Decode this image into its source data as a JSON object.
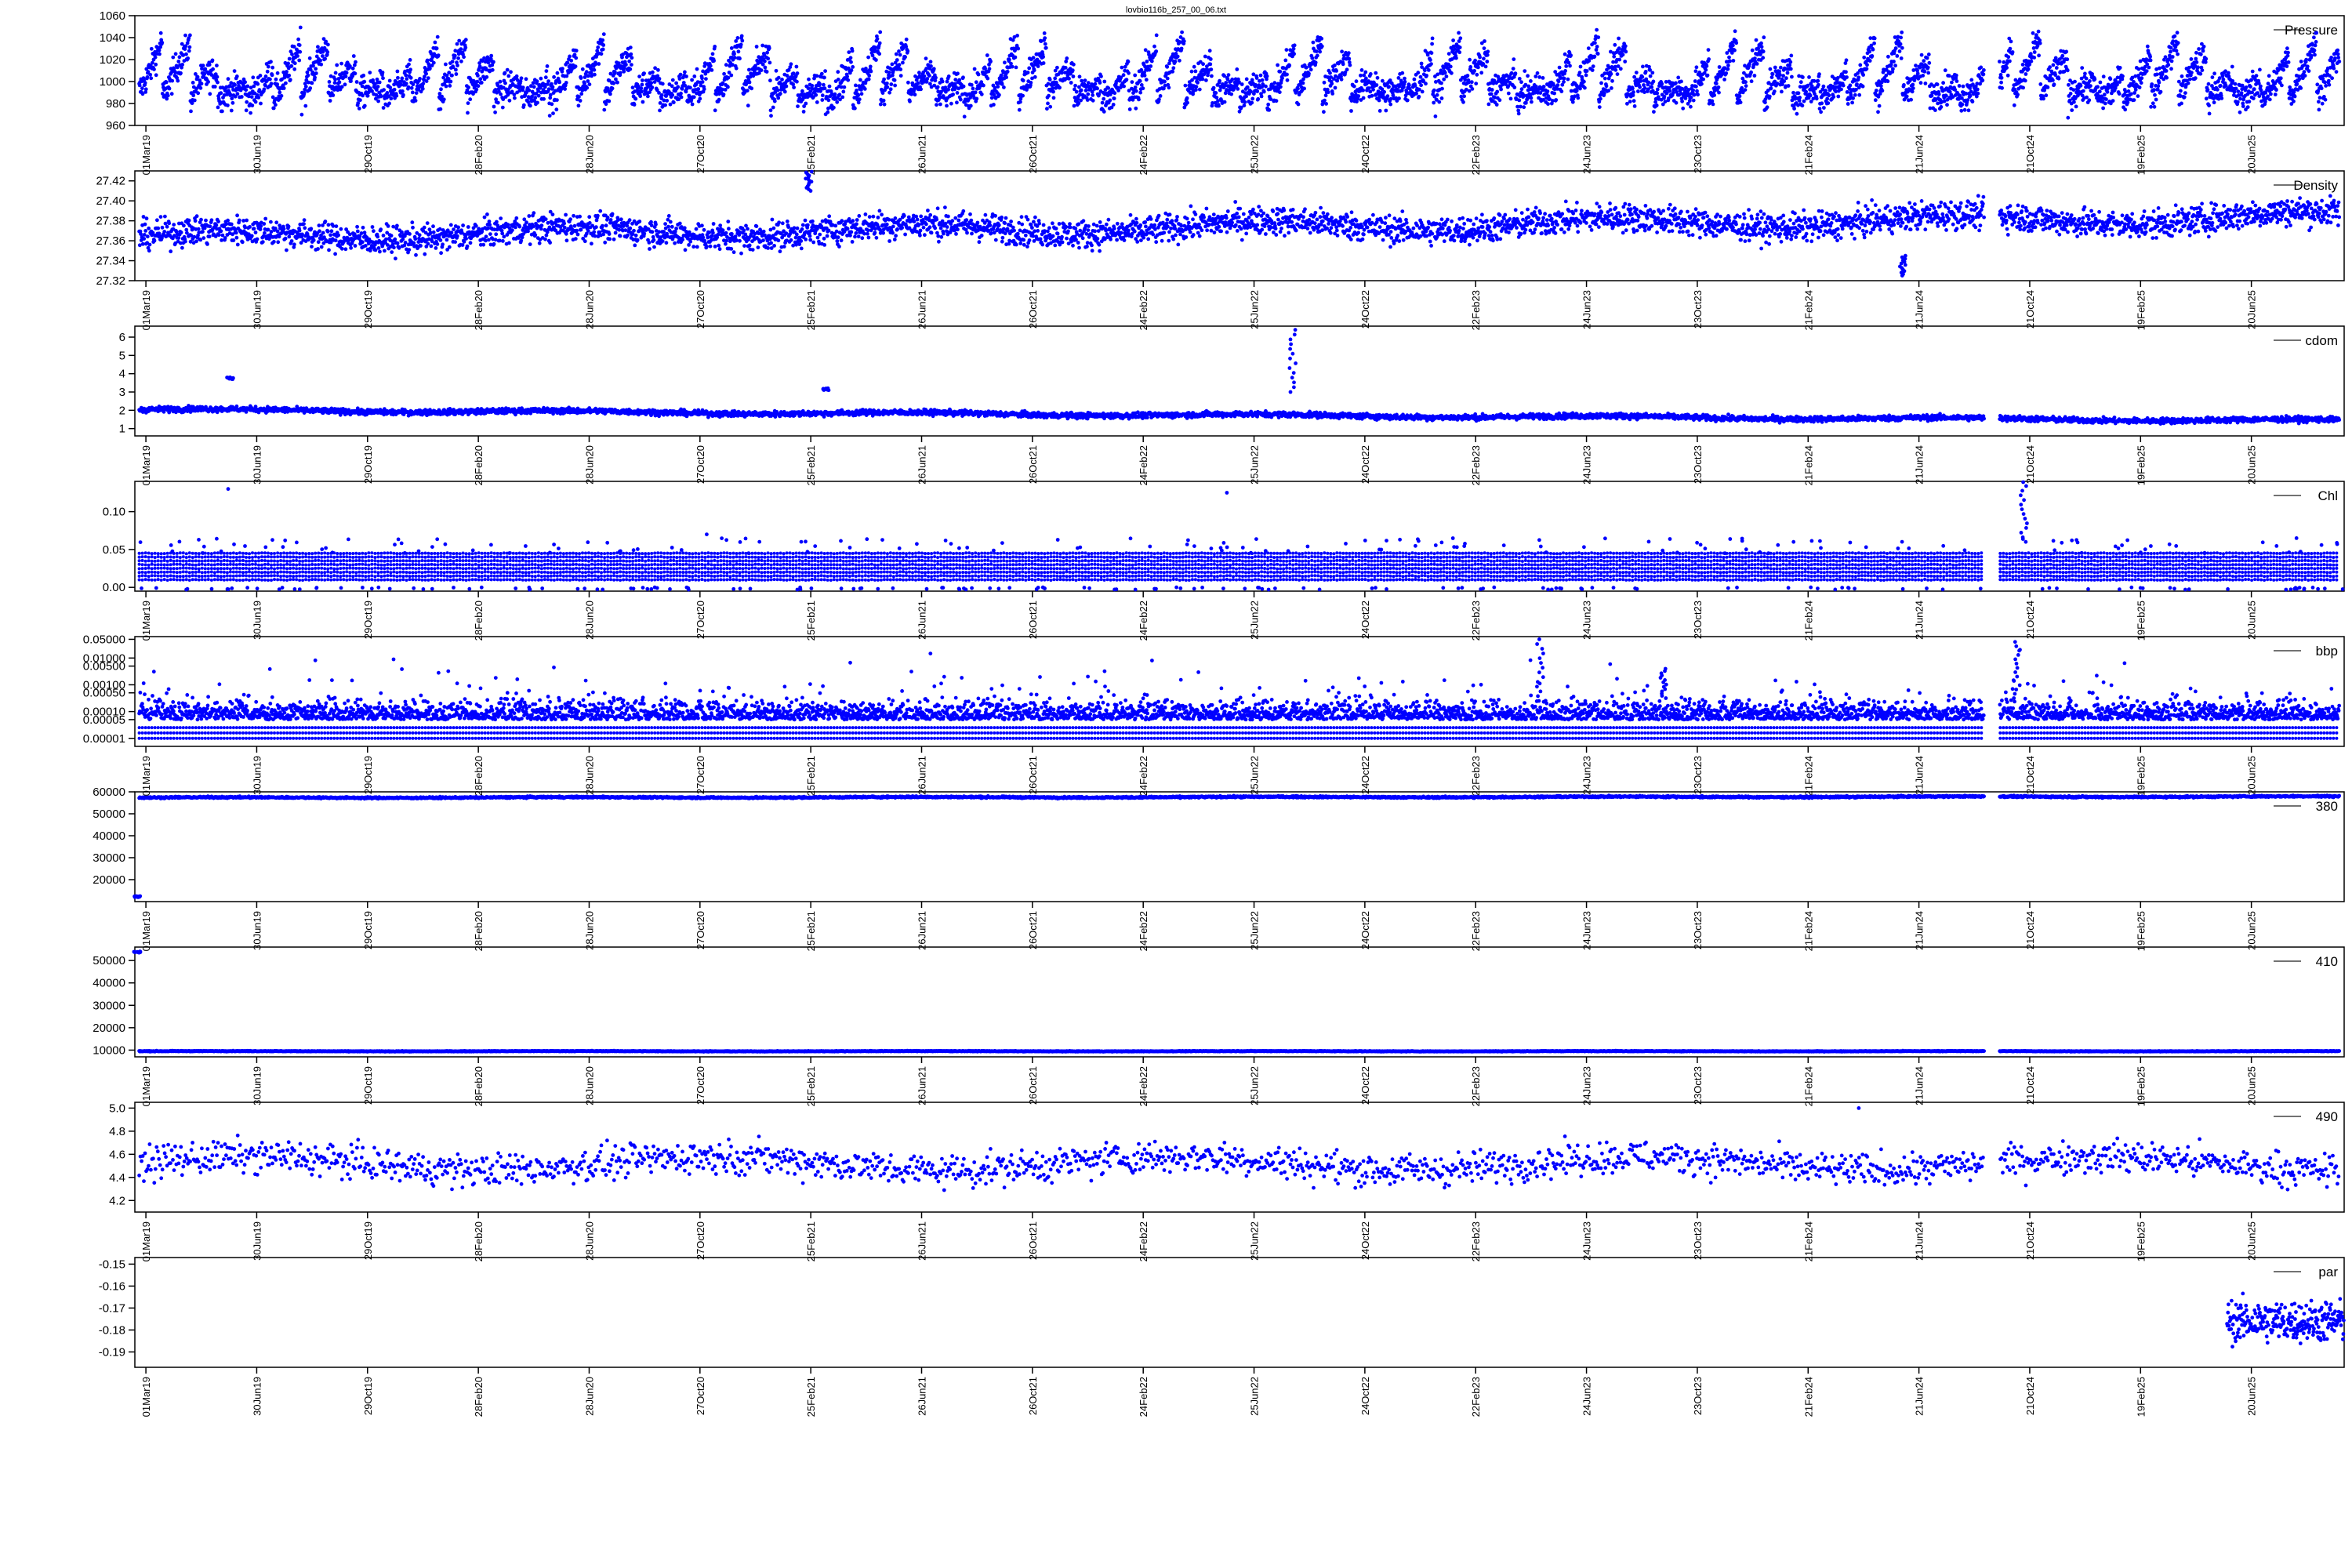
{
  "figure": {
    "title": "lovbio116b_257_00_06.txt",
    "point_color": "#0000ff"
  },
  "chart_data": [
    {
      "type": "scatter",
      "series_label": "Pressure",
      "yticks": [
        "960",
        "980",
        "1000",
        "1020",
        "1040",
        "1060"
      ],
      "ylim": [
        960,
        1060
      ],
      "xticks": [
        "01Mar19",
        "30Jun19",
        "29Oct19",
        "28Feb20",
        "28Jun20",
        "27Oct20",
        "25Feb21",
        "26Jun21",
        "26Oct21",
        "24Feb22",
        "25Jun22",
        "24Oct22",
        "22Feb23",
        "24Jun23",
        "23Oct23",
        "21Feb24",
        "21Jun24",
        "21Oct24",
        "19Feb25",
        "20Jun25"
      ],
      "pattern": "sawtooth",
      "base": 985,
      "spread": 12,
      "amp": 55,
      "period": 0.0125,
      "gap": [
        0.837,
        0.844
      ]
    },
    {
      "type": "scatter",
      "series_label": "Density",
      "yticks": [
        "27.32",
        "27.34",
        "27.36",
        "27.38",
        "27.40",
        "27.42"
      ],
      "ylim": [
        27.32,
        27.43
      ],
      "xticks": [
        "01Mar19",
        "30Jun19",
        "29Oct19",
        "28Feb20",
        "28Jun20",
        "27Oct20",
        "25Feb21",
        "26Jun21",
        "26Oct21",
        "24Feb22",
        "25Jun22",
        "24Oct22",
        "22Feb23",
        "24Jun23",
        "23Oct23",
        "21Feb24",
        "21Jun24",
        "21Oct24",
        "19Feb25",
        "20Jun25"
      ],
      "pattern": "band",
      "base": 27.37,
      "spread": 0.012,
      "drift": 0.02,
      "spikes": [
        [
          0.8,
          27.325,
          27.345
        ],
        [
          0.305,
          27.41,
          27.43
        ]
      ],
      "gap": [
        0.837,
        0.844
      ]
    },
    {
      "type": "scatter",
      "series_label": "cdom",
      "yticks": [
        "1",
        "2",
        "3",
        "4",
        "5",
        "6"
      ],
      "ylim": [
        0.6,
        6.6
      ],
      "xticks": [
        "01Mar19",
        "30Jun19",
        "29Oct19",
        "28Feb20",
        "28Jun20",
        "27Oct20",
        "25Feb21",
        "26Jun21",
        "26Oct21",
        "24Feb22",
        "25Jun22",
        "24Oct22",
        "22Feb23",
        "24Jun23",
        "23Oct23",
        "21Feb24",
        "21Jun24",
        "21Oct24",
        "19Feb25",
        "20Jun25"
      ],
      "pattern": "band",
      "base": 1.85,
      "spread": 0.13,
      "drift": -0.6,
      "spikes": [
        [
          0.524,
          3.0,
          6.4
        ],
        [
          0.043,
          3.7,
          3.8
        ],
        [
          0.313,
          3.1,
          3.2
        ]
      ],
      "gap": [
        0.837,
        0.844
      ]
    },
    {
      "type": "scatter",
      "series_label": "Chl",
      "yticks": [
        "0.00",
        "0.05",
        "0.10"
      ],
      "ylim": [
        -0.005,
        0.14
      ],
      "xticks": [
        "01Mar19",
        "30Jun19",
        "29Oct19",
        "28Feb20",
        "28Jun20",
        "27Oct20",
        "25Feb21",
        "26Jun21",
        "26Oct21",
        "24Feb22",
        "25Jun22",
        "24Oct22",
        "22Feb23",
        "24Jun23",
        "23Oct23",
        "21Feb24",
        "21Jun24",
        "21Oct24",
        "19Feb25",
        "20Jun25"
      ],
      "pattern": "levels",
      "levels": [
        0.01,
        0.015,
        0.02,
        0.025,
        0.03,
        0.035,
        0.04,
        0.045
      ],
      "spikes": [
        [
          0.043,
          0.13,
          0.13
        ],
        [
          0.495,
          0.125,
          0.125
        ],
        [
          0.855,
          0.06,
          0.14
        ],
        [
          0.26,
          0.07,
          0.07
        ]
      ],
      "gap": [
        0.837,
        0.844
      ]
    },
    {
      "type": "scatter",
      "series_label": "bbp",
      "yticks": [
        "0.00001",
        "0.00005",
        "0.00010",
        "0.00050",
        "0.00100",
        "0.00500",
        "0.01000",
        "0.05000"
      ],
      "ylim": [
        -5.3,
        -1.2
      ],
      "log": true,
      "xticks": [
        "01Mar19",
        "30Jun19",
        "29Oct19",
        "28Feb20",
        "28Jun20",
        "27Oct20",
        "25Feb21",
        "26Jun21",
        "26Oct21",
        "24Feb22",
        "25Jun22",
        "24Oct22",
        "22Feb23",
        "24Jun23",
        "23Oct23",
        "21Feb24",
        "21Jun24",
        "21Oct24",
        "19Feb25",
        "20Jun25"
      ],
      "pattern": "logband",
      "base": -4.3,
      "spread": 0.7,
      "spikes": [
        [
          0.636,
          -3.6,
          -1.3
        ],
        [
          0.692,
          -3.5,
          -2.4
        ],
        [
          0.852,
          -3.5,
          -1.4
        ]
      ],
      "gap": [
        0.837,
        0.844
      ]
    },
    {
      "type": "scatter",
      "series_label": "380",
      "yticks": [
        "20000",
        "30000",
        "40000",
        "50000",
        "60000"
      ],
      "ylim": [
        10000,
        60000
      ],
      "xticks": [
        "01Mar19",
        "30Jun19",
        "29Oct19",
        "28Feb20",
        "28Jun20",
        "27Oct20",
        "25Feb21",
        "26Jun21",
        "26Oct21",
        "24Feb22",
        "25Jun22",
        "24Oct22",
        "22Feb23",
        "24Jun23",
        "23Oct23",
        "21Feb24",
        "21Jun24",
        "21Oct24",
        "19Feb25",
        "20Jun25"
      ],
      "pattern": "band",
      "base": 57500,
      "spread": 300,
      "drift": 500,
      "spikes": [
        [
          0.001,
          12000,
          12500
        ]
      ],
      "gap": [
        0.837,
        0.844
      ]
    },
    {
      "type": "scatter",
      "series_label": "410",
      "yticks": [
        "10000",
        "20000",
        "30000",
        "40000",
        "50000"
      ],
      "ylim": [
        7000,
        56000
      ],
      "xticks": [
        "01Mar19",
        "30Jun19",
        "29Oct19",
        "28Feb20",
        "28Jun20",
        "27Oct20",
        "25Feb21",
        "26Jun21",
        "26Oct21",
        "24Feb22",
        "25Jun22",
        "24Oct22",
        "22Feb23",
        "24Jun23",
        "23Oct23",
        "21Feb24",
        "21Jun24",
        "21Oct24",
        "19Feb25",
        "20Jun25"
      ],
      "pattern": "band",
      "base": 9500,
      "spread": 120,
      "drift": 0,
      "spikes": [
        [
          0.001,
          53500,
          54000
        ]
      ],
      "gap": [
        0.837,
        0.844
      ]
    },
    {
      "type": "scatter",
      "series_label": "490",
      "yticks": [
        "4.2",
        "4.4",
        "4.6",
        "4.8",
        "5.0"
      ],
      "ylim": [
        4.1,
        5.05
      ],
      "xticks": [
        "01Mar19",
        "30Jun19",
        "29Oct19",
        "28Feb20",
        "28Jun20",
        "27Oct20",
        "25Feb21",
        "26Jun21",
        "26Oct21",
        "24Feb22",
        "25Jun22",
        "24Oct22",
        "22Feb23",
        "24Jun23",
        "23Oct23",
        "21Feb24",
        "21Jun24",
        "21Oct24",
        "19Feb25",
        "20Jun25"
      ],
      "pattern": "sparse",
      "base": 4.52,
      "spread": 0.12,
      "count": 1900,
      "spikes": [
        [
          0.78,
          5.0,
          5.0
        ]
      ],
      "gap": [
        0.837,
        0.844
      ]
    },
    {
      "type": "scatter",
      "series_label": "par",
      "yticks": [
        "-0.19",
        "-0.18",
        "-0.17",
        "-0.16",
        "-0.15"
      ],
      "ylim": [
        -0.197,
        -0.147
      ],
      "xticks": [
        "01Mar19",
        "30Jun19",
        "29Oct19",
        "28Feb20",
        "28Jun20",
        "27Oct20",
        "25Feb21",
        "26Jun21",
        "26Oct21",
        "24Feb22",
        "25Jun22",
        "24Oct22",
        "22Feb23",
        "24Jun23",
        "23Oct23",
        "21Feb24",
        "21Jun24",
        "21Oct24",
        "19Feb25",
        "20Jun25"
      ],
      "pattern": "window",
      "base": -0.176,
      "spread": 0.008,
      "count": 260,
      "window": [
        0.947,
        1.0
      ]
    }
  ]
}
